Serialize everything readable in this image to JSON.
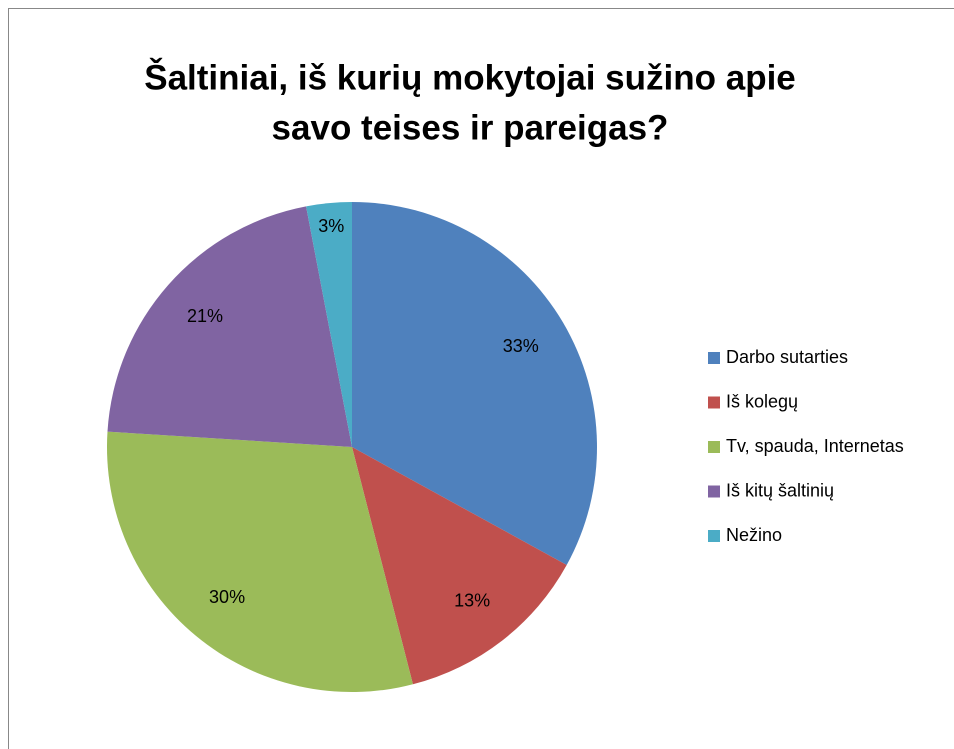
{
  "chart_data": {
    "type": "pie",
    "title": [
      "Šaltiniai, iš kurių mokytojai sužino apie",
      "savo teises ir pareigas?"
    ],
    "categories": [
      "Darbo sutarties",
      "Iš kolegų",
      "Tv, spauda, Internetas",
      "Iš kitų šaltinių",
      "Nežino"
    ],
    "values": [
      33,
      13,
      30,
      21,
      3
    ],
    "value_labels": [
      "33%",
      "13%",
      "30%",
      "21%",
      "3%"
    ],
    "colors": [
      "#4f81bd",
      "#c0504d",
      "#9bbb59",
      "#8064a2",
      "#4bacc6"
    ],
    "legend": "right"
  }
}
